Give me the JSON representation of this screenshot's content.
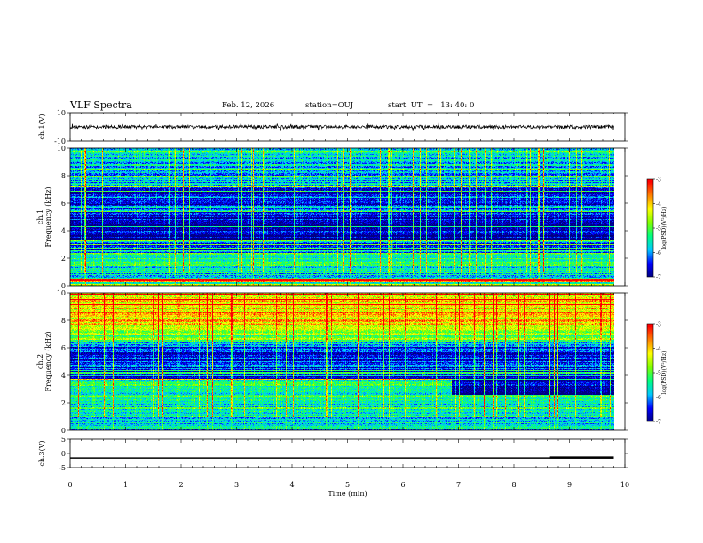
{
  "header": {
    "title": "VLF Spectra",
    "date": "Feb. 12, 2026",
    "station": "station=OUJ",
    "start": "start  UT  =   13: 40: 0"
  },
  "colors": {
    "spectrogram_background": "#00007f",
    "colormap": [
      "#000080",
      "#0000ff",
      "#00c8ff",
      "#00ff80",
      "#80ff00",
      "#ffff00",
      "#ff8000",
      "#ff0000",
      "#ffffff"
    ]
  },
  "chart_data": [
    {
      "type": "line",
      "name": "ch1-voltage",
      "ylabel": "ch.1(V)",
      "ylim": [
        -10,
        10
      ],
      "yticks": [
        "10",
        "-10"
      ],
      "mean_level": 0,
      "noise_amplitude": 1.2
    },
    {
      "type": "heatmap",
      "name": "ch1-spectrogram",
      "ylabel_top": "ch.1",
      "ylabel": "Frequency (kHz)",
      "ylim": [
        0,
        10
      ],
      "yticks": [
        "0",
        "2",
        "4",
        "6",
        "8",
        "10"
      ],
      "colorbar_label": "log(PSD)(V²/Hz)",
      "colorbar_range": [
        -7,
        -3
      ],
      "colorbar_ticks": [
        "-3",
        "-4",
        "-5",
        "-6",
        "-7"
      ],
      "frequency_bands_khz": [
        {
          "from": 0.0,
          "to": 0.3,
          "level": 0.45
        },
        {
          "from": 0.3,
          "to": 0.55,
          "level": 0.95
        },
        {
          "from": 0.55,
          "to": 1.0,
          "level": 0.35
        },
        {
          "from": 1.0,
          "to": 2.4,
          "level": 0.38
        },
        {
          "from": 2.4,
          "to": 3.4,
          "level": 0.18
        },
        {
          "from": 3.4,
          "to": 4.7,
          "level": 0.05
        },
        {
          "from": 4.7,
          "to": 7.2,
          "level": 0.12
        },
        {
          "from": 7.2,
          "to": 10.0,
          "level": 0.3
        }
      ]
    },
    {
      "type": "heatmap",
      "name": "ch2-spectrogram",
      "ylabel_top": "ch.2",
      "ylabel": "Frequency (kHz)",
      "ylim": [
        0,
        10
      ],
      "yticks": [
        "0",
        "2",
        "4",
        "6",
        "8",
        "10"
      ],
      "colorbar_label": "log(PSD)(V²/Hz)",
      "colorbar_range": [
        -7,
        -3
      ],
      "colorbar_ticks": [
        "-3",
        "-4",
        "-5",
        "-6",
        "-7"
      ],
      "frequency_bands_khz": [
        {
          "from": 0.0,
          "to": 1.0,
          "level": 0.3
        },
        {
          "from": 1.0,
          "to": 2.6,
          "level": 0.4
        },
        {
          "from": 2.6,
          "to": 3.8,
          "level": 0.42
        },
        {
          "from": 3.8,
          "to": 6.4,
          "level": 0.15
        },
        {
          "from": 6.4,
          "to": 7.4,
          "level": 0.55
        },
        {
          "from": 7.4,
          "to": 10.0,
          "level": 0.72
        }
      ]
    },
    {
      "type": "line",
      "name": "ch3-voltage",
      "ylabel": "ch.3(V)",
      "ylim": [
        -5,
        5
      ],
      "yticks": [
        "5",
        "0",
        "-5"
      ],
      "mean_level": -1.6,
      "noise_amplitude": 0.05
    }
  ],
  "time_axis": {
    "xlabel": "Time (min)",
    "xlim": [
      0,
      10
    ],
    "xticks": [
      "0",
      "1",
      "2",
      "3",
      "4",
      "5",
      "6",
      "7",
      "8",
      "9",
      "10"
    ],
    "data_end": 9.8
  }
}
